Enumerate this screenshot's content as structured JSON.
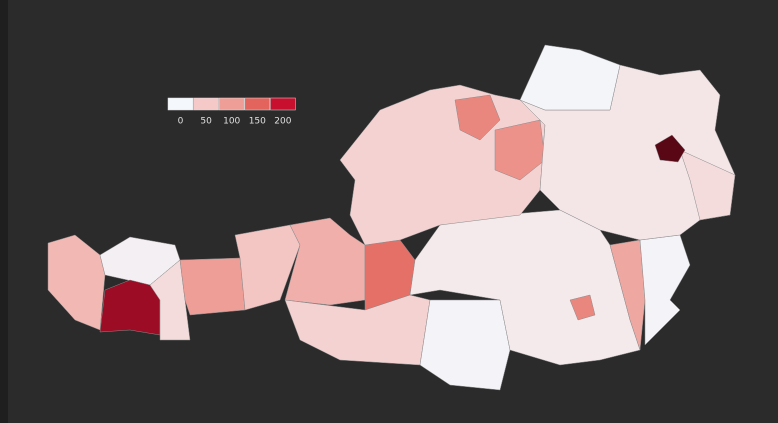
{
  "chart_data": {
    "type": "choropleth",
    "legend": {
      "ticks": [
        0,
        50,
        100,
        150,
        200
      ],
      "colors": [
        "#f4f8fc",
        "#f4c9c8",
        "#ee9e97",
        "#e2645c",
        "#c8102e"
      ]
    },
    "values": [
      70,
      10,
      220,
      30,
      100,
      55,
      80,
      140,
      40,
      5,
      15,
      120,
      90,
      5,
      40,
      120,
      110,
      20,
      3,
      30,
      260
    ]
  }
}
